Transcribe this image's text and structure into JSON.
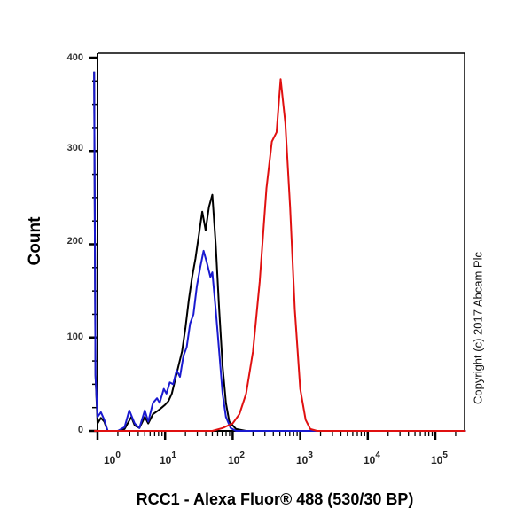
{
  "chart_data": {
    "type": "line",
    "title": "",
    "xlabel": "RCC1 - Alexa Fluor® 488 (530/30 BP)",
    "ylabel": "Count",
    "xscale": "log",
    "xlim": [
      0.6,
      250000
    ],
    "ylim": [
      0,
      410
    ],
    "y_ticks": [
      0,
      100,
      200,
      300,
      400
    ],
    "x_ticks": [
      "10^0",
      "10^1",
      "10^2",
      "10^3",
      "10^4",
      "10^5"
    ],
    "annotation": "Copyright (c) 2017 Abcam Plc",
    "series": [
      {
        "name": "black",
        "color": "#000000",
        "points_log10x_count": [
          [
            -0.05,
            385
          ],
          [
            -0.03,
            60
          ],
          [
            0.0,
            8
          ],
          [
            0.05,
            14
          ],
          [
            0.1,
            10
          ],
          [
            0.15,
            0
          ],
          [
            0.3,
            0
          ],
          [
            0.4,
            2
          ],
          [
            0.5,
            15
          ],
          [
            0.55,
            6
          ],
          [
            0.62,
            3
          ],
          [
            0.7,
            15
          ],
          [
            0.75,
            8
          ],
          [
            0.82,
            18
          ],
          [
            0.9,
            22
          ],
          [
            0.95,
            25
          ],
          [
            1.0,
            28
          ],
          [
            1.05,
            32
          ],
          [
            1.1,
            40
          ],
          [
            1.15,
            55
          ],
          [
            1.2,
            70
          ],
          [
            1.25,
            85
          ],
          [
            1.3,
            110
          ],
          [
            1.35,
            140
          ],
          [
            1.4,
            165
          ],
          [
            1.45,
            185
          ],
          [
            1.5,
            210
          ],
          [
            1.55,
            235
          ],
          [
            1.6,
            215
          ],
          [
            1.65,
            240
          ],
          [
            1.7,
            253
          ],
          [
            1.75,
            200
          ],
          [
            1.8,
            130
          ],
          [
            1.85,
            70
          ],
          [
            1.9,
            30
          ],
          [
            1.95,
            10
          ],
          [
            2.05,
            2
          ],
          [
            2.2,
            0
          ],
          [
            5.45,
            0
          ]
        ]
      },
      {
        "name": "blue",
        "color": "#1a1ad0",
        "points_log10x_count": [
          [
            -0.05,
            385
          ],
          [
            -0.03,
            60
          ],
          [
            0.0,
            15
          ],
          [
            0.05,
            20
          ],
          [
            0.1,
            12
          ],
          [
            0.15,
            0
          ],
          [
            0.3,
            0
          ],
          [
            0.4,
            4
          ],
          [
            0.47,
            22
          ],
          [
            0.55,
            8
          ],
          [
            0.62,
            3
          ],
          [
            0.7,
            22
          ],
          [
            0.75,
            10
          ],
          [
            0.82,
            30
          ],
          [
            0.88,
            35
          ],
          [
            0.92,
            30
          ],
          [
            0.98,
            45
          ],
          [
            1.02,
            40
          ],
          [
            1.07,
            52
          ],
          [
            1.12,
            50
          ],
          [
            1.17,
            65
          ],
          [
            1.22,
            58
          ],
          [
            1.27,
            80
          ],
          [
            1.32,
            90
          ],
          [
            1.37,
            115
          ],
          [
            1.42,
            125
          ],
          [
            1.47,
            155
          ],
          [
            1.52,
            175
          ],
          [
            1.57,
            193
          ],
          [
            1.62,
            180
          ],
          [
            1.67,
            165
          ],
          [
            1.7,
            170
          ],
          [
            1.75,
            130
          ],
          [
            1.8,
            85
          ],
          [
            1.85,
            40
          ],
          [
            1.9,
            15
          ],
          [
            1.97,
            3
          ],
          [
            2.05,
            0
          ],
          [
            5.45,
            0
          ]
        ]
      },
      {
        "name": "red",
        "color": "#e01010",
        "points_log10x_count": [
          [
            -0.05,
            0
          ],
          [
            1.7,
            0
          ],
          [
            1.85,
            3
          ],
          [
            2.0,
            8
          ],
          [
            2.1,
            18
          ],
          [
            2.2,
            40
          ],
          [
            2.3,
            85
          ],
          [
            2.4,
            160
          ],
          [
            2.5,
            260
          ],
          [
            2.58,
            310
          ],
          [
            2.65,
            320
          ],
          [
            2.71,
            377
          ],
          [
            2.78,
            330
          ],
          [
            2.85,
            240
          ],
          [
            2.92,
            130
          ],
          [
            3.0,
            45
          ],
          [
            3.08,
            12
          ],
          [
            3.15,
            2
          ],
          [
            3.25,
            0
          ],
          [
            5.45,
            0
          ]
        ]
      }
    ]
  },
  "axes": {
    "ylabel": "Count",
    "xlabel": "RCC1 - Alexa Fluor® 488 (530/30 BP)",
    "y_tick_labels": [
      "400",
      "300",
      "200",
      "100",
      "0"
    ],
    "x_tick_labels": [
      {
        "base": "10",
        "exp": "0"
      },
      {
        "base": "10",
        "exp": "1"
      },
      {
        "base": "10",
        "exp": "2"
      },
      {
        "base": "10",
        "exp": "3"
      },
      {
        "base": "10",
        "exp": "4"
      },
      {
        "base": "10",
        "exp": "5"
      }
    ]
  },
  "annotation": "Copyright (c) 2017 Abcam Plc"
}
